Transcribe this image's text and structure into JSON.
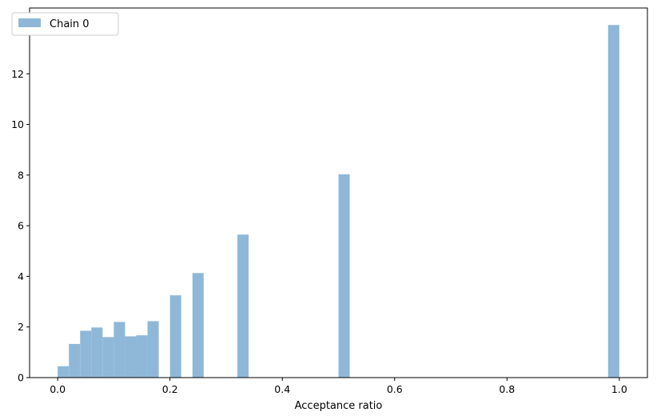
{
  "chart_data": {
    "type": "bar",
    "xlabel": "Acceptance ratio",
    "ylabel": "",
    "xlim": [
      -0.05,
      1.05
    ],
    "ylim": [
      0,
      14.6
    ],
    "xticks": [
      0.0,
      0.2,
      0.4,
      0.6,
      0.8,
      1.0
    ],
    "xtick_labels": [
      "0.0",
      "0.2",
      "0.4",
      "0.6",
      "0.8",
      "1.0"
    ],
    "yticks": [
      0,
      2,
      4,
      6,
      8,
      10,
      12,
      14
    ],
    "ytick_labels": [
      "0",
      "2",
      "4",
      "6",
      "8",
      "10",
      "12",
      "14"
    ],
    "grid": false,
    "legend_position": "top-left",
    "color": "#8fb8d8",
    "series": [
      {
        "name": "Chain 0",
        "bin_width": 0.02,
        "bins": [
          {
            "x0": 0.0,
            "value": 0.45
          },
          {
            "x0": 0.02,
            "value": 1.33
          },
          {
            "x0": 0.04,
            "value": 1.85
          },
          {
            "x0": 0.06,
            "value": 1.98
          },
          {
            "x0": 0.08,
            "value": 1.6
          },
          {
            "x0": 0.1,
            "value": 2.2
          },
          {
            "x0": 0.12,
            "value": 1.63
          },
          {
            "x0": 0.14,
            "value": 1.67
          },
          {
            "x0": 0.16,
            "value": 2.23
          },
          {
            "x0": 0.2,
            "value": 3.25
          },
          {
            "x0": 0.24,
            "value": 4.13
          },
          {
            "x0": 0.32,
            "value": 5.65
          },
          {
            "x0": 0.5,
            "value": 8.03
          },
          {
            "x0": 0.98,
            "value": 13.93
          }
        ]
      }
    ]
  }
}
